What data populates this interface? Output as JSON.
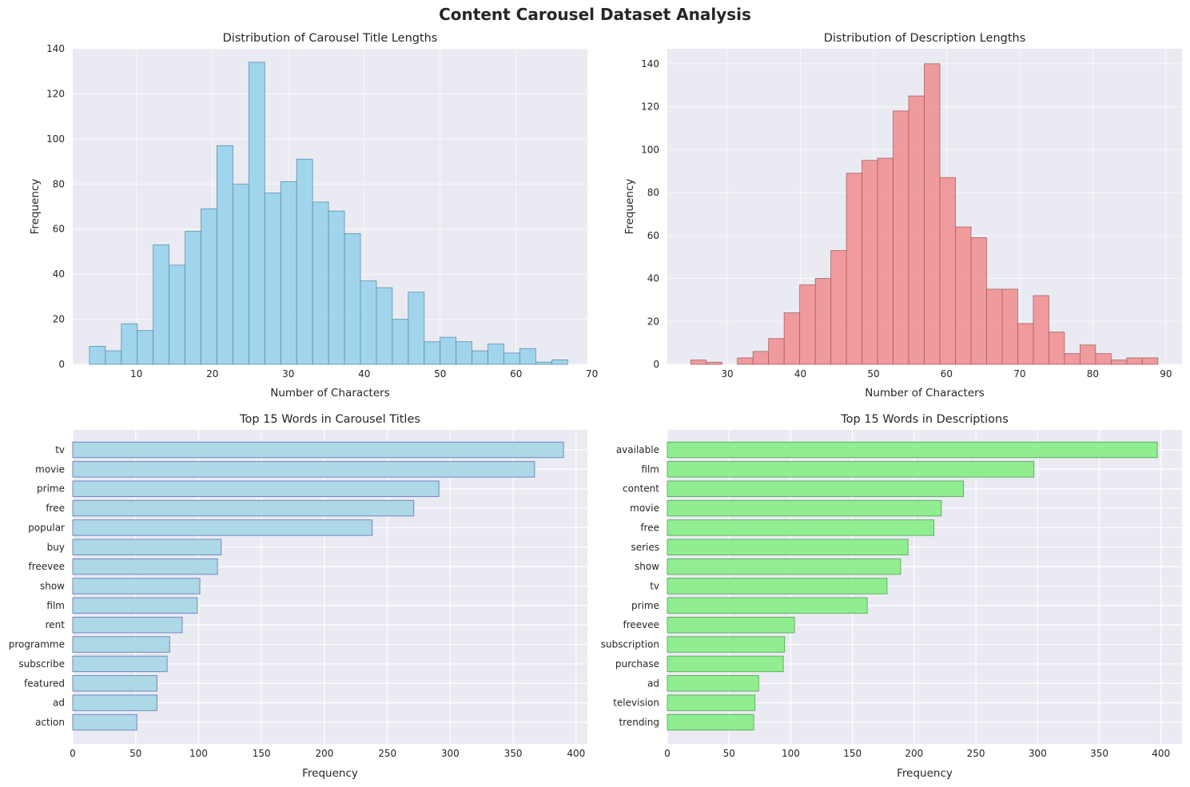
{
  "figure": {
    "title": "Content Carousel Dataset Analysis"
  },
  "colors": {
    "axes_bg": "#eaeaf2",
    "grid": "#ffffff",
    "title_hist": "#87ceeb",
    "desc_hist": "#f08080",
    "title_words": "#add8e6",
    "title_words_edge": "#6a7fbf",
    "desc_words": "#90ee90",
    "desc_words_edge": "#5aa85a"
  },
  "chart_data": [
    {
      "type": "bar",
      "subtype": "histogram",
      "title": "Distribution of Carousel Title Lengths",
      "xlabel": "Number of Characters",
      "ylabel": "Frequency",
      "xlim": [
        1.6,
        69.4
      ],
      "ylim": [
        0,
        140
      ],
      "xticks": [
        10,
        20,
        30,
        40,
        50,
        60,
        70
      ],
      "yticks": [
        0,
        20,
        40,
        60,
        80,
        100,
        120,
        140
      ],
      "bin_start": 3.8,
      "bin_width": 2.1,
      "values": [
        8,
        6,
        18,
        15,
        53,
        44,
        59,
        69,
        97,
        80,
        134,
        76,
        81,
        91,
        72,
        68,
        58,
        37,
        34,
        20,
        32,
        10,
        12,
        10,
        6,
        9,
        5,
        7,
        1,
        2
      ],
      "grid": true,
      "color": "#87ceeb"
    },
    {
      "type": "bar",
      "subtype": "histogram",
      "title": "Distribution of Description Lengths",
      "xlabel": "Number of Characters",
      "ylabel": "Frequency",
      "xlim": [
        21.8,
        92.2
      ],
      "ylim": [
        0,
        147
      ],
      "xticks": [
        30,
        40,
        50,
        60,
        70,
        80,
        90
      ],
      "yticks": [
        0,
        20,
        40,
        60,
        80,
        100,
        120,
        140
      ],
      "bin_start": 25,
      "bin_width": 2.13,
      "values": [
        2,
        1,
        0,
        3,
        6,
        12,
        24,
        37,
        40,
        53,
        89,
        95,
        96,
        118,
        125,
        140,
        87,
        64,
        59,
        35,
        35,
        19,
        32,
        15,
        5,
        9,
        5,
        2,
        3,
        3
      ],
      "grid": true,
      "color": "#f08080"
    },
    {
      "type": "bar",
      "orientation": "horizontal",
      "title": "Top 15 Words in Carousel Titles",
      "xlabel": "Frequency",
      "ylabel": "",
      "xlim": [
        0,
        409
      ],
      "xticks": [
        0,
        50,
        100,
        150,
        200,
        250,
        300,
        350,
        400
      ],
      "categories": [
        "tv",
        "movie",
        "prime",
        "free",
        "popular",
        "buy",
        "freevee",
        "show",
        "film",
        "rent",
        "programme",
        "subscribe",
        "featured",
        "ad",
        "action"
      ],
      "values": [
        390,
        367,
        291,
        271,
        238,
        118,
        115,
        101,
        99,
        87,
        77,
        75,
        67,
        67,
        51
      ],
      "grid": true,
      "color": "#add8e6"
    },
    {
      "type": "bar",
      "orientation": "horizontal",
      "title": "Top 15 Words in Descriptions",
      "xlabel": "Frequency",
      "ylabel": "",
      "xlim": [
        0,
        417
      ],
      "xticks": [
        0,
        50,
        100,
        150,
        200,
        250,
        300,
        350,
        400
      ],
      "categories": [
        "available",
        "film",
        "content",
        "movie",
        "free",
        "series",
        "show",
        "tv",
        "prime",
        "freevee",
        "subscription",
        "purchase",
        "ad",
        "television",
        "trending"
      ],
      "values": [
        397,
        297,
        240,
        222,
        216,
        195,
        189,
        178,
        162,
        103,
        95,
        94,
        74,
        71,
        70
      ],
      "grid": true,
      "color": "#90ee90"
    }
  ]
}
